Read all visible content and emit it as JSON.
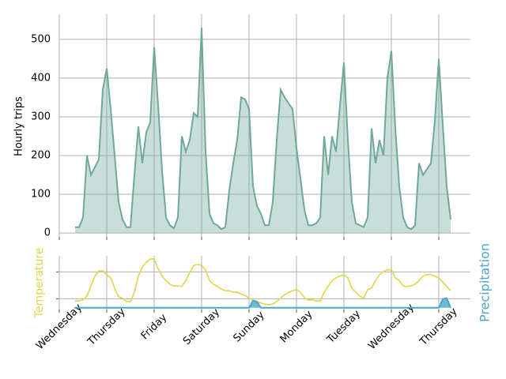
{
  "chart_data": [
    {
      "type": "area",
      "ylabel": "Hourly trips",
      "color": "#6fa89c",
      "xlim": [
        0,
        208
      ],
      "xticks": [
        {
          "value": 0,
          "label": "Wednesday"
        },
        {
          "value": 24,
          "label": "Thursday"
        },
        {
          "value": 48,
          "label": "Friday"
        },
        {
          "value": 72,
          "label": "Saturday"
        },
        {
          "value": 96,
          "label": "Sunday"
        },
        {
          "value": 120,
          "label": "Monday"
        },
        {
          "value": 144,
          "label": "Tuesday"
        },
        {
          "value": 168,
          "label": "Wednesday"
        },
        {
          "value": 192,
          "label": "Thursday"
        }
      ],
      "ylim": [
        -10,
        565
      ],
      "yticks": [
        0,
        100,
        200,
        300,
        400,
        500
      ],
      "grid": true,
      "x": [
        8,
        10,
        12,
        14,
        16,
        18,
        20,
        22,
        24,
        26,
        28,
        30,
        32,
        34,
        36,
        38,
        40,
        42,
        44,
        46,
        48,
        50,
        52,
        54,
        56,
        58,
        60,
        62,
        64,
        66,
        68,
        70,
        72,
        74,
        76,
        78,
        80,
        82,
        84,
        86,
        88,
        90,
        92,
        94,
        96,
        98,
        100,
        102,
        104,
        106,
        108,
        110,
        112,
        114,
        116,
        118,
        120,
        122,
        124,
        126,
        128,
        130,
        132,
        134,
        136,
        138,
        140,
        142,
        144,
        146,
        148,
        150,
        152,
        154,
        156,
        158,
        160,
        162,
        164,
        166,
        168,
        170,
        172,
        174,
        176,
        178,
        180,
        182,
        184,
        186,
        188,
        190,
        192,
        194,
        196,
        198
      ],
      "values": [
        15,
        15,
        40,
        200,
        150,
        170,
        190,
        370,
        425,
        320,
        200,
        80,
        35,
        15,
        15,
        150,
        275,
        180,
        260,
        285,
        480,
        330,
        160,
        40,
        20,
        12,
        40,
        250,
        210,
        240,
        310,
        300,
        530,
        210,
        50,
        25,
        20,
        10,
        15,
        110,
        180,
        240,
        350,
        345,
        320,
        120,
        70,
        50,
        20,
        20,
        80,
        240,
        370,
        350,
        335,
        320,
        220,
        140,
        60,
        20,
        20,
        25,
        40,
        250,
        150,
        250,
        210,
        330,
        440,
        240,
        80,
        25,
        20,
        15,
        40,
        270,
        180,
        240,
        200,
        400,
        470,
        270,
        120,
        40,
        15,
        10,
        20,
        180,
        150,
        165,
        180,
        290,
        450,
        280,
        120,
        35
      ]
    },
    {
      "type": "line",
      "xlim": [
        0,
        208
      ],
      "xticks": [
        {
          "value": 0,
          "label": "Wednesday"
        },
        {
          "value": 24,
          "label": "Thursday"
        },
        {
          "value": 48,
          "label": "Friday"
        },
        {
          "value": 72,
          "label": "Saturday"
        },
        {
          "value": 96,
          "label": "Sunday"
        },
        {
          "value": 120,
          "label": "Monday"
        },
        {
          "value": 144,
          "label": "Tuesday"
        },
        {
          "value": 168,
          "label": "Wednesday"
        },
        {
          "value": 192,
          "label": "Thursday"
        }
      ],
      "ylim": [
        0,
        10
      ],
      "yticks": [
        2,
        7
      ],
      "y2lim": [
        -0.1,
        3
      ],
      "grid": true,
      "x": [
        8,
        10,
        12,
        14,
        16,
        18,
        20,
        22,
        24,
        26,
        28,
        30,
        32,
        34,
        36,
        38,
        40,
        42,
        44,
        46,
        48,
        50,
        52,
        54,
        56,
        58,
        60,
        62,
        64,
        66,
        68,
        70,
        72,
        74,
        76,
        78,
        80,
        82,
        84,
        86,
        88,
        90,
        92,
        94,
        96,
        98,
        100,
        102,
        104,
        106,
        108,
        110,
        112,
        114,
        116,
        118,
        120,
        122,
        124,
        126,
        128,
        130,
        132,
        134,
        136,
        138,
        140,
        142,
        144,
        146,
        148,
        150,
        152,
        154,
        156,
        158,
        160,
        162,
        164,
        166,
        168,
        170,
        172,
        174,
        176,
        178,
        180,
        182,
        184,
        186,
        188,
        190,
        192,
        194,
        196,
        198
      ],
      "series": [
        {
          "name": "Temperature",
          "color": "#e3d44c",
          "values": [
            1.6,
            1.6,
            1.8,
            2.5,
            4.4,
            6.2,
            7.2,
            7.2,
            6.5,
            5.9,
            4.0,
            2.4,
            2.1,
            1.5,
            1.5,
            3.2,
            6.2,
            7.9,
            8.8,
            9.4,
            9.4,
            7.6,
            6.2,
            5.4,
            4.7,
            4.4,
            4.4,
            4.3,
            5.4,
            6.9,
            8.2,
            8.4,
            8.2,
            7.4,
            5.4,
            4.7,
            4.3,
            3.8,
            3.5,
            3.5,
            3.2,
            3.2,
            2.9,
            2.6,
            2.1,
            1.8,
            1.5,
            1.2,
            1.0,
            0.9,
            1.0,
            1.5,
            2.1,
            2.8,
            3.2,
            3.5,
            3.7,
            3.2,
            2.2,
            1.8,
            1.8,
            1.6,
            1.6,
            3.2,
            4.3,
            5.4,
            5.9,
            6.2,
            6.5,
            5.9,
            4.0,
            3.2,
            2.5,
            2.1,
            3.7,
            4.0,
            5.4,
            6.5,
            7.1,
            7.4,
            7.4,
            5.9,
            5.4,
            4.4,
            4.3,
            4.4,
            4.7,
            5.4,
            6.2,
            6.5,
            6.5,
            6.2,
            5.9,
            5.1,
            4.3,
            3.5
          ]
        },
        {
          "name": "Precipitation",
          "color": "#4aa7c9",
          "axis": "y2",
          "values": [
            0,
            0,
            0,
            0,
            0,
            0,
            0,
            0,
            0,
            0,
            0,
            0,
            0,
            0,
            0,
            0,
            0,
            0,
            0,
            0,
            0,
            0,
            0,
            0,
            0,
            0,
            0,
            0,
            0,
            0,
            0,
            0,
            0,
            0,
            0,
            0,
            0,
            0,
            0,
            0,
            0,
            0,
            0,
            0,
            0,
            0.4,
            0.35,
            0,
            0,
            0,
            0,
            0,
            0,
            0,
            0,
            0,
            0,
            0,
            0,
            0,
            0,
            0,
            0,
            0,
            0,
            0,
            0,
            0,
            0,
            0,
            0,
            0,
            0,
            0,
            0,
            0,
            0,
            0,
            0,
            0,
            0,
            0,
            0,
            0,
            0,
            0,
            0,
            0,
            0,
            0,
            0,
            0,
            0,
            0.5,
            0.55,
            0
          ]
        }
      ]
    }
  ]
}
